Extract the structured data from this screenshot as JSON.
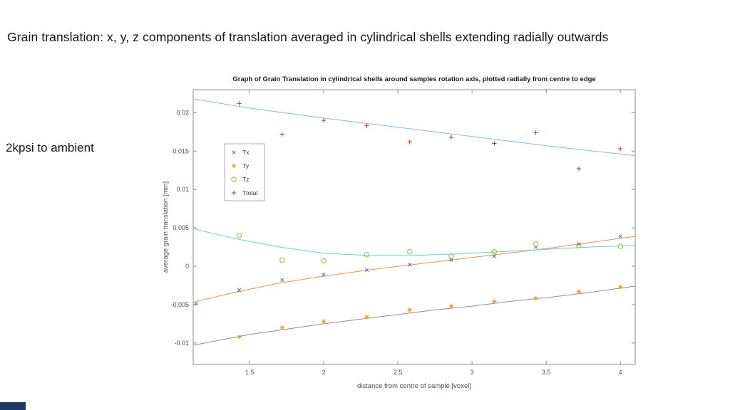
{
  "slide": {
    "title": "Grain translation: x, y, z components of translation averaged in cylindrical shells extending radially outwards",
    "condition_label": "2kpsi to ambient"
  },
  "chart_data": {
    "type": "scatter",
    "title": "Graph of Grain Translation in cylindrical shells around  samples rotation axis, plotted radially from centre to edge",
    "xlabel": "distance from centre of sample [voxel]",
    "ylabel": "average grain translation [mm]",
    "xlim": [
      1.12,
      4.1
    ],
    "ylim": [
      -0.0128,
      0.023
    ],
    "xticks": [
      1.5,
      2,
      2.5,
      3,
      3.5,
      4
    ],
    "yticks": [
      -0.01,
      -0.005,
      0,
      0.005,
      0.01,
      0.015,
      0.02
    ],
    "grid": false,
    "legend_position": "upper-left-inside",
    "legend_entries": [
      "Tx",
      "Ty",
      "Tz",
      "Ttotal"
    ],
    "series": [
      {
        "name": "Tx",
        "marker": "x",
        "color": "#2e7eb5",
        "points": [
          [
            1.14,
            -0.0049
          ],
          [
            1.43,
            -0.0031
          ],
          [
            1.72,
            -0.0018
          ],
          [
            2.0,
            -0.0011
          ],
          [
            2.29,
            -0.0005
          ],
          [
            2.58,
            0.0002
          ],
          [
            2.86,
            0.0008
          ],
          [
            3.15,
            0.0013
          ],
          [
            3.43,
            0.0025
          ],
          [
            3.72,
            0.0029
          ],
          [
            4.0,
            0.0039
          ]
        ],
        "fit": {
          "color": "#e0945c",
          "points": [
            [
              1.12,
              -0.0047
            ],
            [
              1.4,
              -0.0034
            ],
            [
              1.7,
              -0.0022
            ],
            [
              2.0,
              -0.0013
            ],
            [
              2.3,
              -0.0005
            ],
            [
              2.6,
              0.0002
            ],
            [
              2.9,
              0.0009
            ],
            [
              3.2,
              0.0016
            ],
            [
              3.5,
              0.0023
            ],
            [
              3.8,
              0.0031
            ],
            [
              4.1,
              0.0039
            ]
          ]
        }
      },
      {
        "name": "Ty",
        "marker": "*",
        "color": "#e2a23c",
        "points": [
          [
            1.43,
            -0.0092
          ],
          [
            1.72,
            -0.008
          ],
          [
            2.0,
            -0.0072
          ],
          [
            2.29,
            -0.0066
          ],
          [
            2.58,
            -0.0057
          ],
          [
            2.86,
            -0.0052
          ],
          [
            3.15,
            -0.0046
          ],
          [
            3.43,
            -0.0042
          ],
          [
            3.72,
            -0.0033
          ],
          [
            4.0,
            -0.0027
          ]
        ],
        "fit": {
          "color": "#8f8f8f",
          "points": [
            [
              1.12,
              -0.0103
            ],
            [
              1.5,
              -0.0089
            ],
            [
              1.75,
              -0.0082
            ],
            [
              2.0,
              -0.0075
            ],
            [
              2.25,
              -0.0069
            ],
            [
              2.5,
              -0.0063
            ],
            [
              2.75,
              -0.0057
            ],
            [
              3.0,
              -0.0052
            ],
            [
              3.25,
              -0.0046
            ],
            [
              3.5,
              -0.0041
            ],
            [
              3.8,
              -0.0034
            ],
            [
              4.1,
              -0.0026
            ]
          ]
        }
      },
      {
        "name": "Tz",
        "marker": "o",
        "color": "#a9b23e",
        "points": [
          [
            1.43,
            0.004
          ],
          [
            1.72,
            0.0008
          ],
          [
            2.0,
            0.0007
          ],
          [
            2.29,
            0.0015
          ],
          [
            2.58,
            0.0019
          ],
          [
            2.86,
            0.0013
          ],
          [
            3.15,
            0.0019
          ],
          [
            3.43,
            0.0029
          ],
          [
            3.72,
            0.0027
          ],
          [
            4.0,
            0.0026
          ]
        ],
        "fit": {
          "color": "#6fcad0",
          "points": [
            [
              1.12,
              0.0049
            ],
            [
              1.4,
              0.0036
            ],
            [
              1.7,
              0.0025
            ],
            [
              2.0,
              0.0017
            ],
            [
              2.3,
              0.0014
            ],
            [
              2.6,
              0.0014
            ],
            [
              2.9,
              0.0016
            ],
            [
              3.2,
              0.0019
            ],
            [
              3.5,
              0.0022
            ],
            [
              3.8,
              0.0025
            ],
            [
              4.1,
              0.0027
            ]
          ]
        }
      },
      {
        "name": "Ttotal",
        "marker": "+",
        "color": "#b23b3b",
        "points": [
          [
            1.43,
            0.0212
          ],
          [
            1.72,
            0.0172
          ],
          [
            2.0,
            0.019
          ],
          [
            2.29,
            0.0183
          ],
          [
            2.58,
            0.0162
          ],
          [
            2.86,
            0.0168
          ],
          [
            3.15,
            0.016
          ],
          [
            3.43,
            0.0174
          ],
          [
            3.72,
            0.0127
          ],
          [
            4.0,
            0.0153
          ]
        ],
        "fit": {
          "color": "#86bcd8",
          "points": [
            [
              1.12,
              0.0218
            ],
            [
              1.5,
              0.0206
            ],
            [
              2.0,
              0.0193
            ],
            [
              2.5,
              0.0181
            ],
            [
              3.0,
              0.0169
            ],
            [
              3.5,
              0.0157
            ],
            [
              4.1,
              0.0144
            ]
          ]
        }
      }
    ]
  }
}
